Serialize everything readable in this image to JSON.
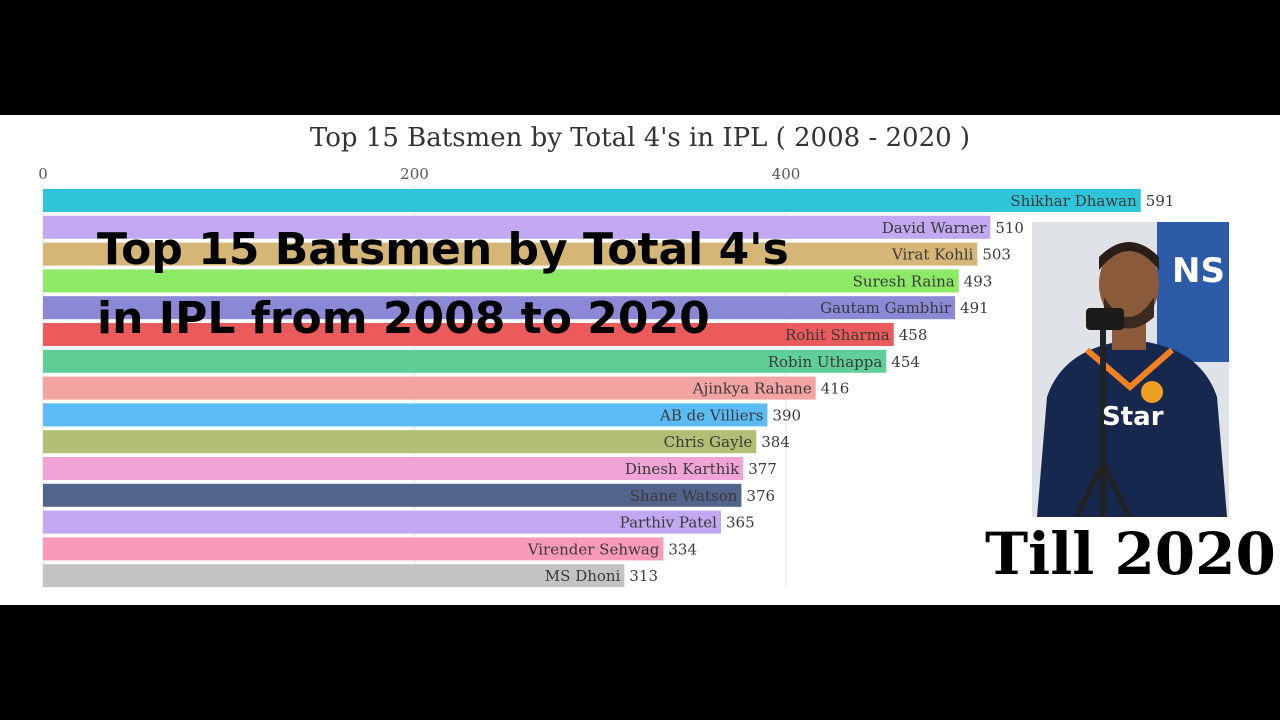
{
  "chart_data": {
    "type": "bar",
    "orientation": "horizontal",
    "title": "Top 15 Batsmen by Total 4's in IPL ( 2008 - 2020 )",
    "xlim": [
      0,
      600
    ],
    "ticks": [
      "0",
      "200",
      "400"
    ],
    "tick_values": [
      0,
      200,
      400
    ],
    "categories": [
      "Shikhar Dhawan",
      "David Warner",
      "Virat Kohli",
      "Suresh Raina",
      "Gautam Gambhir",
      "Rohit Sharma",
      "Robin Uthappa",
      "Ajinkya Rahane",
      "AB de Villiers",
      "Chris Gayle",
      "Dinesh Karthik",
      "Shane Watson",
      "Parthiv Patel",
      "Virender Sehwag",
      "MS Dhoni"
    ],
    "values": [
      591,
      510,
      503,
      493,
      491,
      458,
      454,
      416,
      390,
      384,
      377,
      376,
      365,
      334,
      313
    ],
    "colors": [
      "#2ec4d9",
      "#c1a8f0",
      "#d5b677",
      "#8cea64",
      "#8b88d6",
      "#ec5b5b",
      "#5fcf97",
      "#f4a3a3",
      "#5bbcf5",
      "#b3bd74",
      "#f0a4d6",
      "#52648b",
      "#c1a8f0",
      "#f99ab8",
      "#c3c3c3"
    ],
    "grid": true
  },
  "overlay": {
    "line1": "Top 15 Batsmen by Total 4's",
    "line2": "in IPL from 2008 to 2020"
  },
  "photo": {
    "jersey_text": "Star",
    "banner_text": "NS BL"
  },
  "caption": "Till 2020"
}
